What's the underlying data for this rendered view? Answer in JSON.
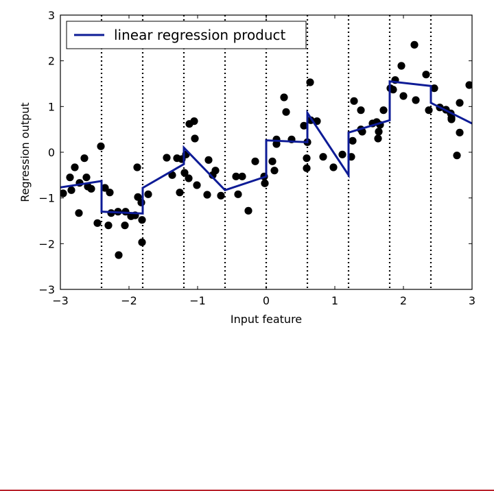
{
  "chart_data": {
    "type": "line",
    "title": "",
    "xlabel": "Input feature",
    "ylabel": "Regression output",
    "xlim": [
      -3,
      3
    ],
    "ylim": [
      -3,
      3
    ],
    "xticks": [
      -3,
      -2,
      -1,
      0,
      1,
      2,
      3
    ],
    "xtick_labels": [
      "−3",
      "−2",
      "−1",
      "0",
      "1",
      "2",
      "3"
    ],
    "yticks": [
      -3,
      -2,
      -1,
      0,
      1,
      2,
      3
    ],
    "ytick_labels": [
      "−3",
      "−2",
      "−1",
      "0",
      "1",
      "2",
      "3"
    ],
    "grid": false,
    "legend": {
      "position": "top-left",
      "entries": [
        "linear regression product"
      ]
    },
    "colors": {
      "line": "#0d1b96",
      "points": "#000000",
      "bin_edges": "#000000"
    },
    "bin_edges": [
      -2.4,
      -1.8,
      -1.2,
      -0.6,
      0.0,
      0.6,
      1.2,
      1.8,
      2.4
    ],
    "series": [
      {
        "name": "linear regression product",
        "kind": "line",
        "x": [
          -3.0,
          -2.4,
          -2.4,
          -1.8,
          -1.8,
          -1.2,
          -1.2,
          -0.6,
          -0.6,
          0.0,
          0.0,
          0.6,
          0.6,
          1.2,
          1.2,
          1.8,
          1.8,
          2.4,
          2.4,
          3.0
        ],
        "y": [
          -0.77,
          -0.63,
          -1.3,
          -1.34,
          -0.78,
          -0.26,
          0.1,
          -0.83,
          -0.83,
          -0.53,
          0.26,
          0.22,
          0.86,
          -0.5,
          0.43,
          0.7,
          1.55,
          1.45,
          1.08,
          0.63
        ]
      },
      {
        "kind": "scatter",
        "points": [
          [
            -2.96,
            -0.9
          ],
          [
            -2.86,
            -0.55
          ],
          [
            -2.84,
            -0.83
          ],
          [
            -2.79,
            -0.33
          ],
          [
            -2.73,
            -1.33
          ],
          [
            -2.72,
            -0.67
          ],
          [
            -2.65,
            -0.13
          ],
          [
            -2.62,
            -0.55
          ],
          [
            -2.6,
            -0.75
          ],
          [
            -2.55,
            -0.8
          ],
          [
            -2.46,
            -1.55
          ],
          [
            -2.41,
            0.13
          ],
          [
            -2.35,
            -0.78
          ],
          [
            -2.3,
            -1.6
          ],
          [
            -2.28,
            -0.88
          ],
          [
            -2.26,
            -1.33
          ],
          [
            -2.16,
            -1.3
          ],
          [
            -2.15,
            -2.25
          ],
          [
            -2.06,
            -1.6
          ],
          [
            -2.05,
            -1.3
          ],
          [
            -1.97,
            -1.4
          ],
          [
            -1.91,
            -1.38
          ],
          [
            -1.88,
            -0.33
          ],
          [
            -1.87,
            -0.98
          ],
          [
            -1.82,
            -1.1
          ],
          [
            -1.81,
            -1.97
          ],
          [
            -1.81,
            -1.48
          ],
          [
            -1.72,
            -0.92
          ],
          [
            -1.45,
            -0.12
          ],
          [
            -1.37,
            -0.5
          ],
          [
            -1.3,
            -0.13
          ],
          [
            -1.26,
            -0.88
          ],
          [
            -1.23,
            -0.15
          ],
          [
            -1.19,
            -0.45
          ],
          [
            -1.17,
            -0.05
          ],
          [
            -1.13,
            -0.57
          ],
          [
            -1.12,
            0.62
          ],
          [
            -1.05,
            0.68
          ],
          [
            -1.04,
            0.3
          ],
          [
            -1.01,
            -0.72
          ],
          [
            -0.86,
            -0.93
          ],
          [
            -0.84,
            -0.17
          ],
          [
            -0.78,
            -0.5
          ],
          [
            -0.74,
            -0.4
          ],
          [
            -0.66,
            -0.95
          ],
          [
            -0.44,
            -0.53
          ],
          [
            -0.41,
            -0.92
          ],
          [
            -0.35,
            -0.53
          ],
          [
            -0.26,
            -1.28
          ],
          [
            -0.16,
            -0.2
          ],
          [
            -0.03,
            -0.53
          ],
          [
            -0.02,
            -0.68
          ],
          [
            0.09,
            -0.2
          ],
          [
            0.12,
            -0.4
          ],
          [
            0.15,
            0.28
          ],
          [
            0.15,
            0.18
          ],
          [
            0.26,
            1.2
          ],
          [
            0.29,
            0.88
          ],
          [
            0.37,
            0.28
          ],
          [
            0.55,
            0.58
          ],
          [
            0.59,
            -0.13
          ],
          [
            0.59,
            -0.35
          ],
          [
            0.6,
            0.22
          ],
          [
            0.64,
            1.53
          ],
          [
            0.65,
            0.7
          ],
          [
            0.74,
            0.68
          ],
          [
            0.83,
            -0.1
          ],
          [
            0.98,
            -0.33
          ],
          [
            1.11,
            -0.05
          ],
          [
            1.24,
            -0.1
          ],
          [
            1.26,
            0.25
          ],
          [
            1.28,
            1.12
          ],
          [
            1.38,
            0.92
          ],
          [
            1.38,
            0.5
          ],
          [
            1.4,
            0.45
          ],
          [
            1.55,
            0.63
          ],
          [
            1.61,
            0.66
          ],
          [
            1.63,
            0.3
          ],
          [
            1.64,
            0.45
          ],
          [
            1.66,
            0.6
          ],
          [
            1.71,
            0.92
          ],
          [
            1.81,
            1.4
          ],
          [
            1.85,
            1.37
          ],
          [
            1.88,
            1.58
          ],
          [
            1.97,
            1.89
          ],
          [
            2.0,
            1.23
          ],
          [
            2.16,
            2.35
          ],
          [
            2.18,
            1.14
          ],
          [
            2.33,
            1.7
          ],
          [
            2.37,
            0.92
          ],
          [
            2.45,
            1.4
          ],
          [
            2.53,
            0.98
          ],
          [
            2.62,
            0.93
          ],
          [
            2.69,
            0.85
          ],
          [
            2.7,
            0.72
          ],
          [
            2.7,
            0.75
          ],
          [
            2.78,
            -0.07
          ],
          [
            2.82,
            0.43
          ],
          [
            2.82,
            1.08
          ],
          [
            2.96,
            1.47
          ]
        ]
      }
    ]
  }
}
